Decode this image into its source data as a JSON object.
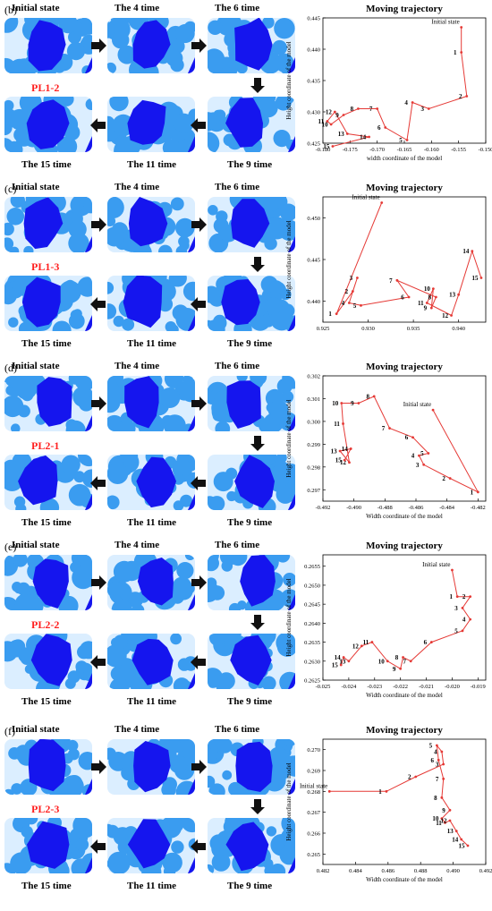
{
  "colors": {
    "circle": "#3a9cf0",
    "grain": "#1515ee",
    "frame": "#1e88e5",
    "arrow": "#111111",
    "line": "#e53935",
    "accent_label": "#ff2020"
  },
  "panels": [
    {
      "letter": "(b)",
      "case_label": "PL1-2",
      "state_labels": [
        "Initial state",
        "The 4 time",
        "The 6 time",
        "The 9 time",
        "The 11 time",
        "The 15 time"
      ],
      "chart_data": {
        "type": "line",
        "title": "Moving trajectory",
        "xlabel": "width coordinate of the model",
        "ylabel": "Height coordinate of the model",
        "xlim": [
          -0.18,
          -0.15
        ],
        "ylim": [
          0.425,
          0.445
        ],
        "xticks": [
          "-0.180",
          "-0.175",
          "-0.170",
          "-0.165",
          "-0.160",
          "-0.155",
          "-0.150"
        ],
        "yticks": [
          "0.425",
          "0.430",
          "0.435",
          "0.440",
          "0.445"
        ],
        "annotation": "Initial state",
        "points": [
          {
            "label": "",
            "x": -0.1545,
            "y": 0.4435
          },
          {
            "label": "1",
            "x": -0.1545,
            "y": 0.4395
          },
          {
            "label": "2",
            "x": -0.1535,
            "y": 0.4325
          },
          {
            "label": "3",
            "x": -0.1605,
            "y": 0.4305
          },
          {
            "label": "4",
            "x": -0.1635,
            "y": 0.4315
          },
          {
            "label": "5",
            "x": -0.1645,
            "y": 0.4255
          },
          {
            "label": "6",
            "x": -0.1685,
            "y": 0.4275
          },
          {
            "label": "7",
            "x": -0.17,
            "y": 0.4305
          },
          {
            "label": "8",
            "x": -0.1735,
            "y": 0.4305
          },
          {
            "label": "9",
            "x": -0.1762,
            "y": 0.4295
          },
          {
            "label": "10",
            "x": -0.1785,
            "y": 0.428
          },
          {
            "label": "11",
            "x": -0.1792,
            "y": 0.4285
          },
          {
            "label": "12",
            "x": -0.1778,
            "y": 0.43
          },
          {
            "label": "13",
            "x": -0.1755,
            "y": 0.4265
          },
          {
            "label": "14",
            "x": -0.1715,
            "y": 0.426
          },
          {
            "label": "15",
            "x": -0.1782,
            "y": 0.4245
          }
        ]
      }
    },
    {
      "letter": "(c)",
      "case_label": "PL1-3",
      "state_labels": [
        "Initial state",
        "The 4 time",
        "The 6 time",
        "The 9 time",
        "The 11 time",
        "The 15 time"
      ],
      "chart_data": {
        "type": "line",
        "title": "Moving trajectory",
        "xlabel": "",
        "ylabel": "Height coordinate of the model",
        "xlim": [
          0.925,
          0.943
        ],
        "ylim": [
          0.4375,
          0.4525
        ],
        "xticks": [
          "0.925",
          "0.930",
          "0.935",
          "0.940"
        ],
        "yticks": [
          "0.440",
          "0.445",
          "0.450"
        ],
        "annotation": "Initial state",
        "points": [
          {
            "label": "",
            "x": 0.9315,
            "y": 0.4518
          },
          {
            "label": "1",
            "x": 0.9265,
            "y": 0.4385
          },
          {
            "label": "2",
            "x": 0.9283,
            "y": 0.4412
          },
          {
            "label": "3",
            "x": 0.9288,
            "y": 0.4428
          },
          {
            "label": "4",
            "x": 0.9279,
            "y": 0.4398
          },
          {
            "label": "5",
            "x": 0.9292,
            "y": 0.4395
          },
          {
            "label": "6",
            "x": 0.9345,
            "y": 0.4405
          },
          {
            "label": "7",
            "x": 0.9332,
            "y": 0.4425
          },
          {
            "label": "8",
            "x": 0.9375,
            "y": 0.4405
          },
          {
            "label": "9",
            "x": 0.937,
            "y": 0.4392
          },
          {
            "label": "10",
            "x": 0.9372,
            "y": 0.4415
          },
          {
            "label": "11",
            "x": 0.9365,
            "y": 0.4398
          },
          {
            "label": "12",
            "x": 0.9392,
            "y": 0.4383
          },
          {
            "label": "13",
            "x": 0.94,
            "y": 0.4408
          },
          {
            "label": "14",
            "x": 0.9415,
            "y": 0.446
          },
          {
            "label": "15",
            "x": 0.9425,
            "y": 0.4428
          }
        ]
      }
    },
    {
      "letter": "(d)",
      "case_label": "PL2-1",
      "state_labels": [
        "Initial state",
        "The 4 time",
        "The 6 time",
        "The 9 time",
        "The 11 time",
        "The 15 time"
      ],
      "chart_data": {
        "type": "line",
        "title": "Moving trajectory",
        "xlabel": "Width coordinate of the model",
        "ylabel": "Height coordinate of the model",
        "xlim": [
          -0.492,
          -0.4815
        ],
        "ylim": [
          0.2965,
          0.302
        ],
        "xticks": [
          "-0.492",
          "-0.490",
          "-0.488",
          "-0.486",
          "-0.484",
          "-0.482"
        ],
        "yticks": [
          "0.297",
          "0.298",
          "0.299",
          "0.300",
          "0.301",
          "0.302"
        ],
        "annotation": "Initial state",
        "points": [
          {
            "label": "",
            "x": -0.4849,
            "y": 0.3005
          },
          {
            "label": "1",
            "x": -0.482,
            "y": 0.2969
          },
          {
            "label": "2",
            "x": -0.4838,
            "y": 0.2975
          },
          {
            "label": "3",
            "x": -0.4855,
            "y": 0.2981
          },
          {
            "label": "4",
            "x": -0.4858,
            "y": 0.2985
          },
          {
            "label": "5",
            "x": -0.4852,
            "y": 0.2986
          },
          {
            "label": "6",
            "x": -0.4862,
            "y": 0.2993
          },
          {
            "label": "7",
            "x": -0.4877,
            "y": 0.2997
          },
          {
            "label": "8",
            "x": -0.4887,
            "y": 0.3011
          },
          {
            "label": "9",
            "x": -0.4897,
            "y": 0.3008
          },
          {
            "label": "10",
            "x": -0.4908,
            "y": 0.3008
          },
          {
            "label": "11",
            "x": -0.4907,
            "y": 0.2999
          },
          {
            "label": "12",
            "x": -0.4903,
            "y": 0.2982
          },
          {
            "label": "13",
            "x": -0.4909,
            "y": 0.2987
          },
          {
            "label": "14",
            "x": -0.4902,
            "y": 0.2988
          },
          {
            "label": "15",
            "x": -0.4906,
            "y": 0.2983
          }
        ]
      }
    },
    {
      "letter": "(e)",
      "case_label": "PL2-2",
      "state_labels": [
        "Initial state",
        "The 4 time",
        "The 6 time",
        "The 9 time",
        "The 11 time",
        "The 15 time"
      ],
      "chart_data": {
        "type": "line",
        "title": "Moving trajectory",
        "xlabel": "Width coordinate of the model",
        "ylabel": "Height coordinate of the model",
        "xlim": [
          -0.025,
          -0.0187
        ],
        "ylim": [
          0.2625,
          0.2658
        ],
        "xticks": [
          "-0.025",
          "-0.024",
          "-0.023",
          "-0.022",
          "-0.021",
          "-0.020",
          "-0.019"
        ],
        "yticks": [
          "0.2625",
          "0.2630",
          "0.2635",
          "0.2640",
          "0.2645",
          "0.2650",
          "0.2655"
        ],
        "annotation": "Initial state",
        "points": [
          {
            "label": "",
            "x": -0.02,
            "y": 0.2654
          },
          {
            "label": "1",
            "x": -0.0198,
            "y": 0.2647
          },
          {
            "label": "2",
            "x": -0.0193,
            "y": 0.2647
          },
          {
            "label": "3",
            "x": -0.0196,
            "y": 0.2644
          },
          {
            "label": "4",
            "x": -0.0193,
            "y": 0.2641
          },
          {
            "label": "5",
            "x": -0.0196,
            "y": 0.2638
          },
          {
            "label": "6",
            "x": -0.0208,
            "y": 0.2635
          },
          {
            "label": "7",
            "x": -0.0216,
            "y": 0.263
          },
          {
            "label": "8",
            "x": -0.0219,
            "y": 0.2631
          },
          {
            "label": "9",
            "x": -0.022,
            "y": 0.2628
          },
          {
            "label": "10",
            "x": -0.0225,
            "y": 0.263
          },
          {
            "label": "11",
            "x": -0.0231,
            "y": 0.2635
          },
          {
            "label": "12",
            "x": -0.0235,
            "y": 0.2634
          },
          {
            "label": "13",
            "x": -0.024,
            "y": 0.263
          },
          {
            "label": "14",
            "x": -0.0242,
            "y": 0.2631
          },
          {
            "label": "15",
            "x": -0.0243,
            "y": 0.2629
          }
        ]
      }
    },
    {
      "letter": "(f)",
      "case_label": "PL2-3",
      "state_labels": [
        "Initial state",
        "The 4 time",
        "The 6 time",
        "The 9 time",
        "The 11 time",
        "The 15 time"
      ],
      "chart_data": {
        "type": "line",
        "title": "Moving trajectory",
        "xlabel": "Width coordinate of the model",
        "ylabel": "Height coordinate of the model",
        "xlim": [
          0.482,
          0.492
        ],
        "ylim": [
          0.2645,
          0.2705
        ],
        "xticks": [
          "0.482",
          "0.484",
          "0.486",
          "0.488",
          "0.490",
          "0.492"
        ],
        "yticks": [
          "0.265",
          "0.266",
          "0.267",
          "0.268",
          "0.269",
          "0.270"
        ],
        "annotation": "Initial state",
        "points": [
          {
            "label": "",
            "x": 0.4824,
            "y": 0.268
          },
          {
            "label": "1",
            "x": 0.4859,
            "y": 0.268
          },
          {
            "label": "2",
            "x": 0.4877,
            "y": 0.2687
          },
          {
            "label": "3",
            "x": 0.4894,
            "y": 0.2693
          },
          {
            "label": "4",
            "x": 0.4893,
            "y": 0.2699
          },
          {
            "label": "5",
            "x": 0.489,
            "y": 0.2702
          },
          {
            "label": "6",
            "x": 0.4891,
            "y": 0.2695
          },
          {
            "label": "7",
            "x": 0.4894,
            "y": 0.2686
          },
          {
            "label": "8",
            "x": 0.4893,
            "y": 0.2677
          },
          {
            "label": "9",
            "x": 0.4898,
            "y": 0.2671
          },
          {
            "label": "10",
            "x": 0.4893,
            "y": 0.2667
          },
          {
            "label": "11",
            "x": 0.4895,
            "y": 0.2665
          },
          {
            "label": "12",
            "x": 0.4898,
            "y": 0.2666
          },
          {
            "label": "13",
            "x": 0.4902,
            "y": 0.2661
          },
          {
            "label": "14",
            "x": 0.4905,
            "y": 0.2657
          },
          {
            "label": "15",
            "x": 0.4909,
            "y": 0.2654
          }
        ]
      }
    }
  ]
}
